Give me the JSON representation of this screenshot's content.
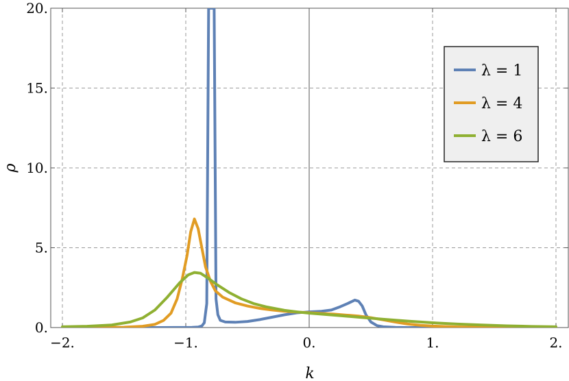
{
  "chart_data": {
    "type": "line",
    "xlabel": "k",
    "ylabel": "ρ",
    "xlim": [
      -2.0,
      2.0
    ],
    "ylim": [
      0,
      20
    ],
    "grid": true,
    "legend_position": "upper-right",
    "x_ticks": [
      {
        "value": -2,
        "label": "−2."
      },
      {
        "value": -1,
        "label": "−1."
      },
      {
        "value": 0,
        "label": "0."
      },
      {
        "value": 1,
        "label": "1."
      },
      {
        "value": 2,
        "label": "2."
      }
    ],
    "y_ticks": [
      {
        "value": 0,
        "label": "0."
      },
      {
        "value": 5,
        "label": "5."
      },
      {
        "value": 10,
        "label": "10."
      },
      {
        "value": 15,
        "label": "15."
      },
      {
        "value": 20,
        "label": "20."
      }
    ],
    "series": [
      {
        "name": "λ = 1",
        "color": "#5e81b5",
        "points": [
          [
            -2.0,
            0
          ],
          [
            -1.2,
            0
          ],
          [
            -0.95,
            0.01
          ],
          [
            -0.9,
            0.03
          ],
          [
            -0.87,
            0.1
          ],
          [
            -0.85,
            0.3
          ],
          [
            -0.83,
            1.5
          ],
          [
            -0.815,
            20
          ],
          [
            -0.77,
            20
          ],
          [
            -0.755,
            1.8
          ],
          [
            -0.74,
            0.8
          ],
          [
            -0.72,
            0.45
          ],
          [
            -0.68,
            0.35
          ],
          [
            -0.6,
            0.33
          ],
          [
            -0.5,
            0.38
          ],
          [
            -0.4,
            0.5
          ],
          [
            -0.3,
            0.65
          ],
          [
            -0.2,
            0.8
          ],
          [
            -0.1,
            0.92
          ],
          [
            0.0,
            0.98
          ],
          [
            0.1,
            1.02
          ],
          [
            0.18,
            1.1
          ],
          [
            0.25,
            1.3
          ],
          [
            0.31,
            1.5
          ],
          [
            0.37,
            1.72
          ],
          [
            0.4,
            1.65
          ],
          [
            0.43,
            1.35
          ],
          [
            0.46,
            0.8
          ],
          [
            0.5,
            0.35
          ],
          [
            0.55,
            0.12
          ],
          [
            0.6,
            0.05
          ],
          [
            0.7,
            0.01
          ],
          [
            0.8,
            0
          ],
          [
            2.0,
            0
          ]
        ]
      },
      {
        "name": "λ = 4",
        "color": "#e19c24",
        "points": [
          [
            -2.0,
            0
          ],
          [
            -1.5,
            0.02
          ],
          [
            -1.35,
            0.08
          ],
          [
            -1.25,
            0.2
          ],
          [
            -1.18,
            0.45
          ],
          [
            -1.12,
            0.9
          ],
          [
            -1.07,
            1.8
          ],
          [
            -1.03,
            3.0
          ],
          [
            -0.99,
            4.5
          ],
          [
            -0.96,
            6.0
          ],
          [
            -0.93,
            6.8
          ],
          [
            -0.9,
            6.2
          ],
          [
            -0.87,
            5.0
          ],
          [
            -0.84,
            3.8
          ],
          [
            -0.8,
            2.9
          ],
          [
            -0.76,
            2.3
          ],
          [
            -0.7,
            1.9
          ],
          [
            -0.6,
            1.55
          ],
          [
            -0.5,
            1.35
          ],
          [
            -0.4,
            1.2
          ],
          [
            -0.3,
            1.1
          ],
          [
            -0.2,
            1.02
          ],
          [
            -0.1,
            0.97
          ],
          [
            0.0,
            0.93
          ],
          [
            0.1,
            0.88
          ],
          [
            0.2,
            0.84
          ],
          [
            0.3,
            0.78
          ],
          [
            0.4,
            0.72
          ],
          [
            0.5,
            0.62
          ],
          [
            0.6,
            0.48
          ],
          [
            0.7,
            0.34
          ],
          [
            0.8,
            0.22
          ],
          [
            0.9,
            0.14
          ],
          [
            1.0,
            0.09
          ],
          [
            1.2,
            0.04
          ],
          [
            1.5,
            0.01
          ],
          [
            2.0,
            0
          ]
        ]
      },
      {
        "name": "λ = 6",
        "color": "#8fb032",
        "points": [
          [
            -2.0,
            0.05
          ],
          [
            -1.8,
            0.08
          ],
          [
            -1.6,
            0.16
          ],
          [
            -1.45,
            0.35
          ],
          [
            -1.35,
            0.6
          ],
          [
            -1.25,
            1.1
          ],
          [
            -1.15,
            1.9
          ],
          [
            -1.05,
            2.8
          ],
          [
            -0.98,
            3.3
          ],
          [
            -0.93,
            3.45
          ],
          [
            -0.88,
            3.4
          ],
          [
            -0.82,
            3.1
          ],
          [
            -0.75,
            2.7
          ],
          [
            -0.65,
            2.2
          ],
          [
            -0.55,
            1.8
          ],
          [
            -0.45,
            1.5
          ],
          [
            -0.35,
            1.3
          ],
          [
            -0.2,
            1.08
          ],
          [
            -0.1,
            0.98
          ],
          [
            0.0,
            0.9
          ],
          [
            0.2,
            0.78
          ],
          [
            0.4,
            0.65
          ],
          [
            0.6,
            0.52
          ],
          [
            0.8,
            0.4
          ],
          [
            1.0,
            0.3
          ],
          [
            1.2,
            0.22
          ],
          [
            1.4,
            0.16
          ],
          [
            1.6,
            0.11
          ],
          [
            1.8,
            0.07
          ],
          [
            2.0,
            0.05
          ]
        ]
      }
    ]
  }
}
